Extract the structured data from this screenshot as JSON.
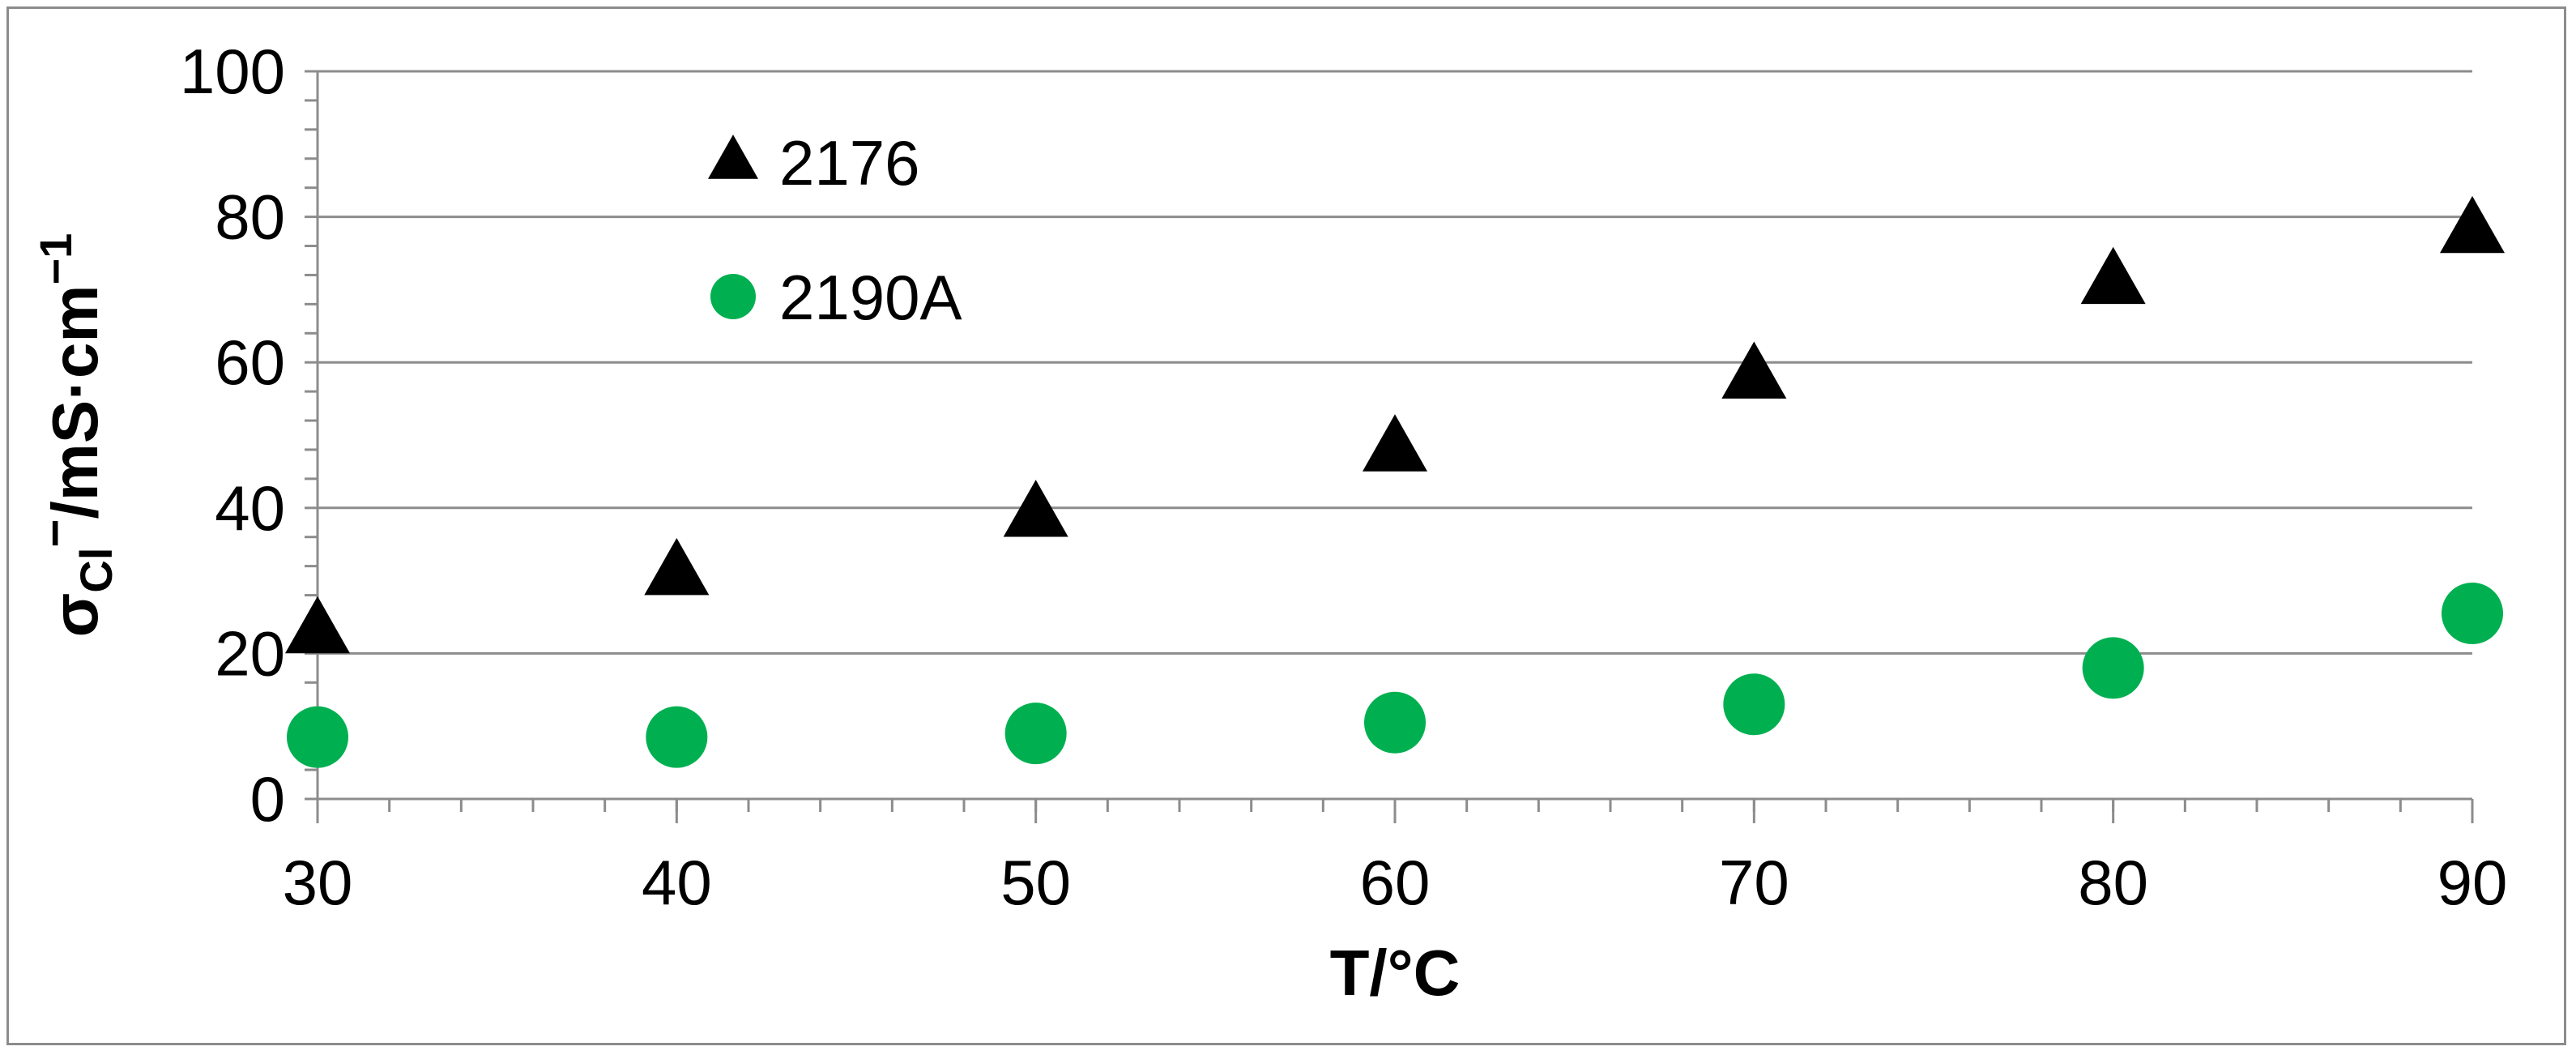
{
  "chart_data": {
    "type": "scatter",
    "title": "",
    "xlabel": "T/°C",
    "ylabel": {
      "sigma": "σ",
      "subscript": "Cl",
      "superscript": "−",
      "unit": "/mS·cm",
      "unit_exponent": "−1"
    },
    "xlim": [
      30,
      90
    ],
    "ylim": [
      0,
      100
    ],
    "x_ticks": [
      30,
      40,
      50,
      60,
      70,
      80,
      90
    ],
    "y_ticks": [
      0,
      20,
      40,
      60,
      80,
      100
    ],
    "x_minor_step": 2,
    "y_minor_step": 4,
    "grid": "horizontal-major",
    "legend": "top-left-inside",
    "series": [
      {
        "name": "2176",
        "marker": "triangle",
        "color": "#000000",
        "x": [
          30,
          40,
          50,
          60,
          70,
          80,
          90
        ],
        "y": [
          23,
          31,
          39,
          48,
          58,
          71,
          78
        ]
      },
      {
        "name": "2190A",
        "marker": "circle",
        "color": "#00b050",
        "x": [
          30,
          40,
          50,
          60,
          70,
          80,
          90
        ],
        "y": [
          8.5,
          8.5,
          9,
          10.5,
          13,
          18,
          25.5
        ]
      }
    ]
  }
}
